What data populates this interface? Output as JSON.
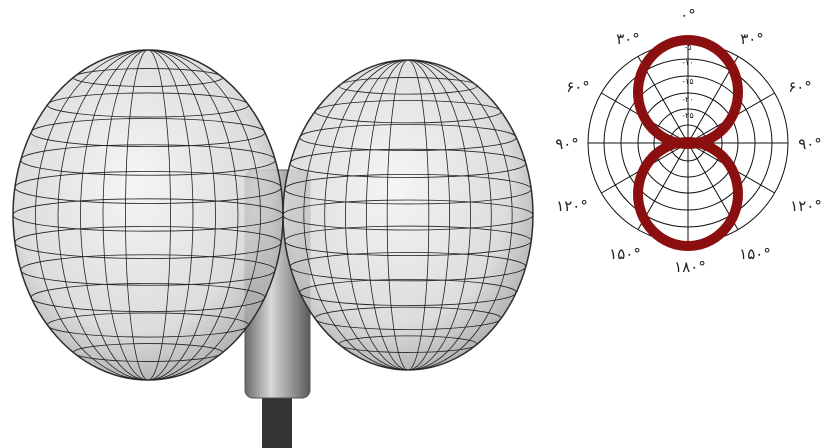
{
  "polar_diagram": {
    "angle_labels": [
      "۰°",
      "۳۰°",
      "۳۰°",
      "۶۰°",
      "۶۰°",
      "۹۰°",
      "۹۰°",
      "۱۲۰°",
      "۱۲۰°",
      "۱۵۰°",
      "۱۵۰°",
      "۱۸۰°"
    ],
    "ring_labels": [
      "-۵",
      "-۱۰",
      "-۱۵",
      "-۲۰",
      "-۲۵"
    ]
  }
}
